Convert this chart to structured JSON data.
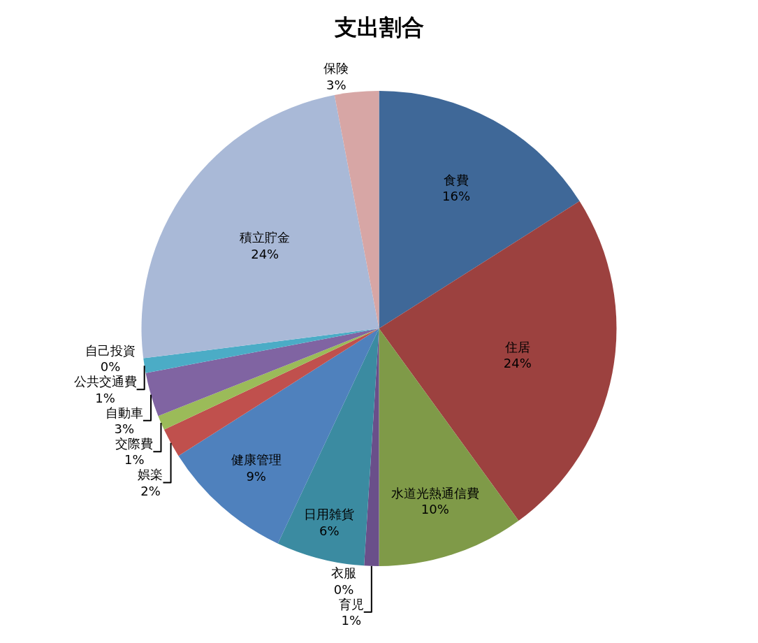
{
  "chart_data": {
    "type": "pie",
    "title": "支出割合",
    "categories": [
      "食費",
      "住居",
      "水道光熱通信費",
      "育児",
      "衣服",
      "日用雑貨",
      "健康管理",
      "娯楽",
      "交際費",
      "自動車",
      "公共交通費",
      "自己投資",
      "積立貯金",
      "保険"
    ],
    "values": [
      16,
      24,
      10,
      1,
      0,
      6,
      9,
      2,
      1,
      3,
      1,
      0,
      24,
      3
    ],
    "value_labels": [
      "16%",
      "24%",
      "10%",
      "1%",
      "0%",
      "6%",
      "9%",
      "2%",
      "1%",
      "3%",
      "1%",
      "0%",
      "24%",
      "3%"
    ],
    "colors": [
      "#3f6898",
      "#9c413f",
      "#7f9a48",
      "#6a4f8a",
      "#b7711f",
      "#3b8ba1",
      "#4f81bd",
      "#c0504d",
      "#9bbb59",
      "#8064a2",
      "#4bacc6",
      "#f79646",
      "#a9b9d7",
      "#d7a6a5"
    ],
    "legend": false
  }
}
